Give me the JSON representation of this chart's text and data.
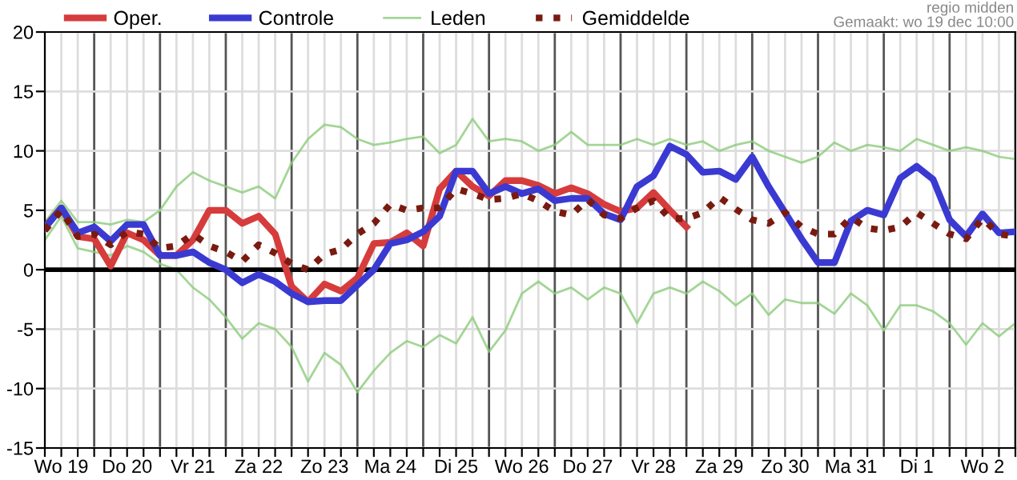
{
  "chart_data": {
    "type": "line",
    "categories": [
      null,
      "Wo 19",
      null,
      null,
      null,
      "Do 20",
      null,
      null,
      null,
      "Vr 21",
      null,
      null,
      null,
      "Za 22",
      null,
      null,
      null,
      "Zo 23",
      null,
      null,
      null,
      "Ma 24",
      null,
      null,
      null,
      "Di 25",
      null,
      null,
      null,
      "Wo 26",
      null,
      null,
      null,
      "Do 27",
      null,
      null,
      null,
      "Vr 28",
      null,
      null,
      null,
      "Za 29",
      null,
      null,
      null,
      "Zo 30",
      null,
      null,
      null,
      "Ma 31",
      null,
      null,
      null,
      "Di 1",
      null,
      null,
      null,
      "Wo 2",
      null,
      null
    ],
    "series": [
      {
        "name": "Oper.",
        "color": "#d63c3c",
        "values": [
          3.6,
          5.2,
          2.8,
          2.6,
          0.3,
          3.1,
          2.5,
          1.2,
          1.2,
          2.5,
          5,
          5,
          3.9,
          4.5,
          3,
          -1.4,
          -2.7,
          -1.2,
          -1.8,
          -0.7,
          2.2,
          2.3,
          3.1,
          2,
          6.8,
          8.3,
          7,
          6.2,
          7.5,
          7.5,
          7.1,
          6.4,
          6.9,
          6.4,
          5.5,
          4.9,
          5.2,
          6.5,
          5,
          3.6,
          null,
          null,
          null,
          null,
          null,
          null,
          null,
          null,
          null,
          null,
          null,
          null,
          null,
          null,
          null,
          null,
          null,
          null,
          null,
          null
        ]
      },
      {
        "name": "Controle",
        "color": "#3a3ad2",
        "values": [
          3.5,
          5.2,
          3.1,
          3.6,
          2.4,
          3.8,
          3.8,
          1.2,
          1.2,
          1.5,
          0.6,
          0,
          -1.1,
          -0.4,
          -1,
          -2,
          -2.7,
          -2.6,
          -2.6,
          -1.3,
          0,
          2.2,
          2.5,
          3.2,
          4.5,
          8.3,
          8.3,
          6.4,
          7,
          6.4,
          6.8,
          5.8,
          6,
          6,
          4.7,
          4.2,
          7,
          7.9,
          10.4,
          9.7,
          8.2,
          8.3,
          7.6,
          9.5,
          7,
          4.8,
          2.6,
          0.6,
          0.6,
          4.1,
          5,
          4.6,
          7.7,
          8.7,
          7.6,
          4.2,
          2.8,
          4.7,
          3.1,
          3.2
        ]
      },
      {
        "name": "Leden",
        "color": "#8ccc7a",
        "values": [
          4,
          5.8,
          4,
          4,
          3.8,
          4.2,
          4,
          5,
          7,
          8.2,
          7.5,
          7,
          6.5,
          7,
          6,
          9,
          11,
          12.2,
          12,
          11,
          10.5,
          10.7,
          11,
          11.2,
          9.8,
          10.5,
          12.7,
          10.8,
          11,
          10.8,
          10,
          10.5,
          11.6,
          10.5,
          10.5,
          10.5,
          11,
          10.5,
          11,
          10.5,
          10.8,
          10,
          10.5,
          10.8,
          10,
          9.5,
          9,
          9.5,
          10.7,
          10,
          10.5,
          10.3,
          10,
          11,
          10.5,
          10,
          10.3,
          10,
          9.5,
          9.3
        ]
      },
      {
        "color": "#8ccc7a",
        "values": [
          2.5,
          4.5,
          1.8,
          1.5,
          1.2,
          2,
          1.5,
          0.5,
          0,
          -1.5,
          -2.5,
          -4,
          -5.8,
          -4.5,
          -5,
          -6.5,
          -9.4,
          -7,
          -8,
          -10.3,
          -8.5,
          -7,
          -6,
          -6.5,
          -5.5,
          -6.2,
          -4,
          -6.9,
          -5.1,
          -2,
          -1,
          -2,
          -1.5,
          -2.5,
          -1.5,
          -2,
          -4.5,
          -2,
          -1.5,
          -2,
          -1,
          -1.8,
          -3,
          -2,
          -3.8,
          -2.5,
          -2.8,
          -2.8,
          -3.7,
          -2,
          -3,
          -5.1,
          -3,
          -3,
          -3.5,
          -4.5,
          -6.3,
          -4.5,
          -5.6,
          -4.5
        ]
      },
      {
        "name": "Gemiddelde",
        "color": "#7a1a10",
        "line_style": "dotted",
        "values": [
          3.3,
          5,
          2.8,
          3,
          2.1,
          3.2,
          3,
          1.8,
          2,
          3,
          2,
          1.5,
          0.7,
          2.1,
          1.4,
          0.5,
          0,
          1.3,
          1.7,
          3,
          3.9,
          5.5,
          5,
          5.2,
          5.2,
          6.8,
          6.4,
          5.9,
          6,
          6.4,
          5.8,
          4.9,
          4.6,
          5.9,
          4.6,
          4.3,
          5.2,
          5.8,
          4.3,
          4.3,
          4.8,
          6.1,
          5.1,
          4.2,
          3.9,
          4.8,
          3.6,
          3,
          3,
          4.4,
          3.5,
          3.3,
          3.6,
          4.8,
          3.9,
          3,
          2.6,
          4.3,
          3,
          2.8
        ]
      }
    ],
    "ylim": [
      -15,
      20
    ],
    "yticks": [
      -15,
      -10,
      -5,
      0,
      5,
      10,
      15,
      20
    ],
    "ref_lines": [
      {
        "axis": "y",
        "value": 0,
        "color": "#000000"
      }
    ],
    "grid": true,
    "legend": "top",
    "marker": "none",
    "line_style": "solid",
    "annotations": [
      "regio midden",
      "Gemaakt: wo 19 dec 10:00"
    ]
  }
}
